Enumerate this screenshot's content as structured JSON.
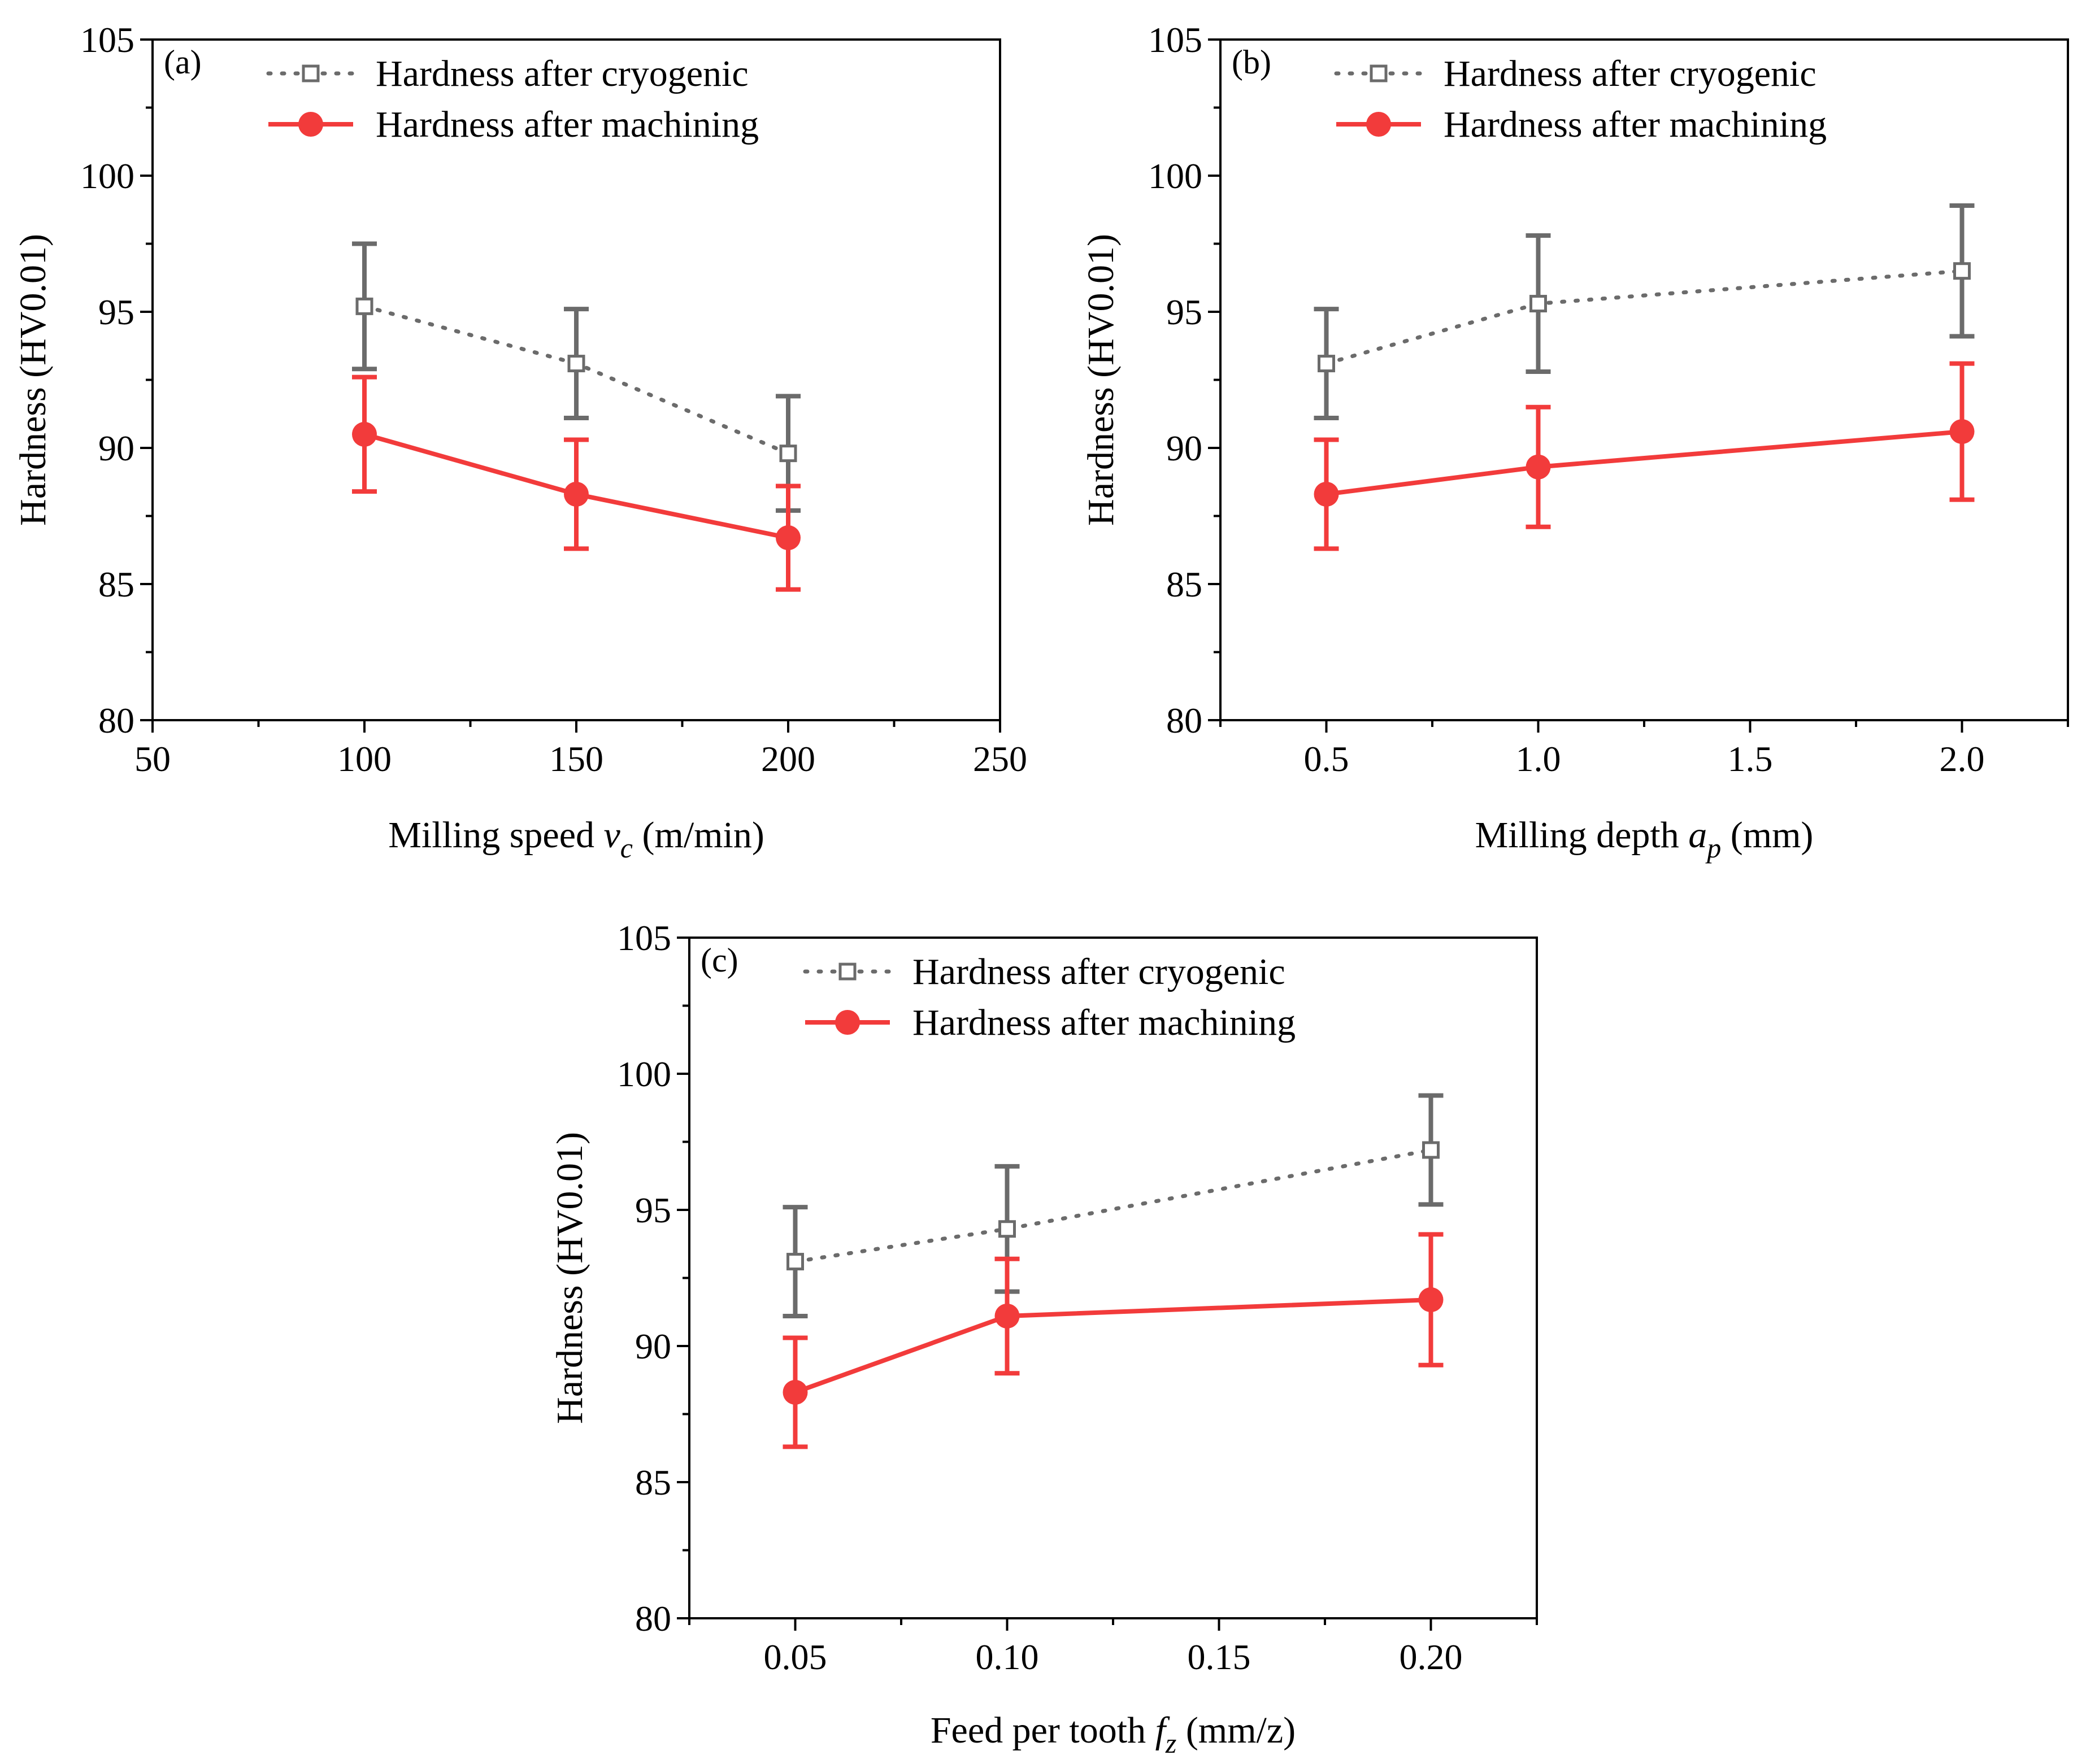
{
  "colors": {
    "cryogenic": "#6b6b6b",
    "machining": "#f23b3b",
    "axis": "#000000"
  },
  "legend": {
    "cryogenic": "Hardness after cryogenic",
    "machining": "Hardness after machining"
  },
  "chart_data": [
    {
      "type": "line",
      "panel": "(a)",
      "xlabel": "Milling speed v_c (m/min)",
      "xlabel_parts": {
        "pre": "Milling speed ",
        "var": "v",
        "sub": "c",
        "post": " (m/min)"
      },
      "ylabel": "Hardness (HV0.01)",
      "xlim": [
        50,
        250
      ],
      "ylim": [
        80,
        105
      ],
      "xticks": [
        50,
        100,
        150,
        200,
        250
      ],
      "xtick_labels": [
        "50",
        "100",
        "150",
        "200",
        "250"
      ],
      "yticks": [
        80,
        85,
        90,
        95,
        100,
        105
      ],
      "ytick_labels": [
        "80",
        "85",
        "90",
        "95",
        "100",
        "105"
      ],
      "series": [
        {
          "name": "Hardness after cryogenic",
          "key": "cryogenic",
          "x": [
            100,
            150,
            200
          ],
          "values": [
            95.2,
            93.1,
            89.8
          ],
          "errors": [
            2.3,
            2.0,
            2.1
          ]
        },
        {
          "name": "Hardness after machining",
          "key": "machining",
          "x": [
            100,
            150,
            200
          ],
          "values": [
            90.5,
            88.3,
            86.7
          ],
          "errors": [
            2.1,
            2.0,
            1.9
          ]
        }
      ]
    },
    {
      "type": "line",
      "panel": "(b)",
      "xlabel": "Milling depth a_p (mm)",
      "xlabel_parts": {
        "pre": "Milling depth ",
        "var": "a",
        "sub": "p",
        "post": " (mm)"
      },
      "ylabel": "Hardness (HV0.01)",
      "xlim": [
        0.25,
        2.25
      ],
      "ylim": [
        80,
        105
      ],
      "xticks": [
        0.5,
        1.0,
        1.5,
        2.0
      ],
      "xtick_labels": [
        "0.5",
        "1.0",
        "1.5",
        "2.0"
      ],
      "yticks": [
        80,
        85,
        90,
        95,
        100,
        105
      ],
      "ytick_labels": [
        "80",
        "85",
        "90",
        "95",
        "100",
        "105"
      ],
      "series": [
        {
          "name": "Hardness after cryogenic",
          "key": "cryogenic",
          "x": [
            0.5,
            1.0,
            2.0
          ],
          "values": [
            93.1,
            95.3,
            96.5
          ],
          "errors": [
            2.0,
            2.5,
            2.4
          ]
        },
        {
          "name": "Hardness after machining",
          "key": "machining",
          "x": [
            0.5,
            1.0,
            2.0
          ],
          "values": [
            88.3,
            89.3,
            90.6
          ],
          "errors": [
            2.0,
            2.2,
            2.5
          ]
        }
      ]
    },
    {
      "type": "line",
      "panel": "(c)",
      "xlabel": "Feed per tooth f_z (mm/z)",
      "xlabel_parts": {
        "pre": "Feed per tooth ",
        "var": "f",
        "sub": "z",
        "post": " (mm/z)"
      },
      "ylabel": "Hardness (HV0.01)",
      "xlim": [
        0.025,
        0.225
      ],
      "ylim": [
        80,
        105
      ],
      "xticks": [
        0.05,
        0.1,
        0.15,
        0.2
      ],
      "xtick_labels": [
        "0.05",
        "0.10",
        "0.15",
        "0.20"
      ],
      "yticks": [
        80,
        85,
        90,
        95,
        100,
        105
      ],
      "ytick_labels": [
        "80",
        "85",
        "90",
        "95",
        "100",
        "105"
      ],
      "series": [
        {
          "name": "Hardness after cryogenic",
          "key": "cryogenic",
          "x": [
            0.05,
            0.1,
            0.2
          ],
          "values": [
            93.1,
            94.3,
            97.2
          ],
          "errors": [
            2.0,
            2.3,
            2.0
          ]
        },
        {
          "name": "Hardness after machining",
          "key": "machining",
          "x": [
            0.05,
            0.1,
            0.2
          ],
          "values": [
            88.3,
            91.1,
            91.7
          ],
          "errors": [
            2.0,
            2.1,
            2.4
          ]
        }
      ]
    }
  ]
}
